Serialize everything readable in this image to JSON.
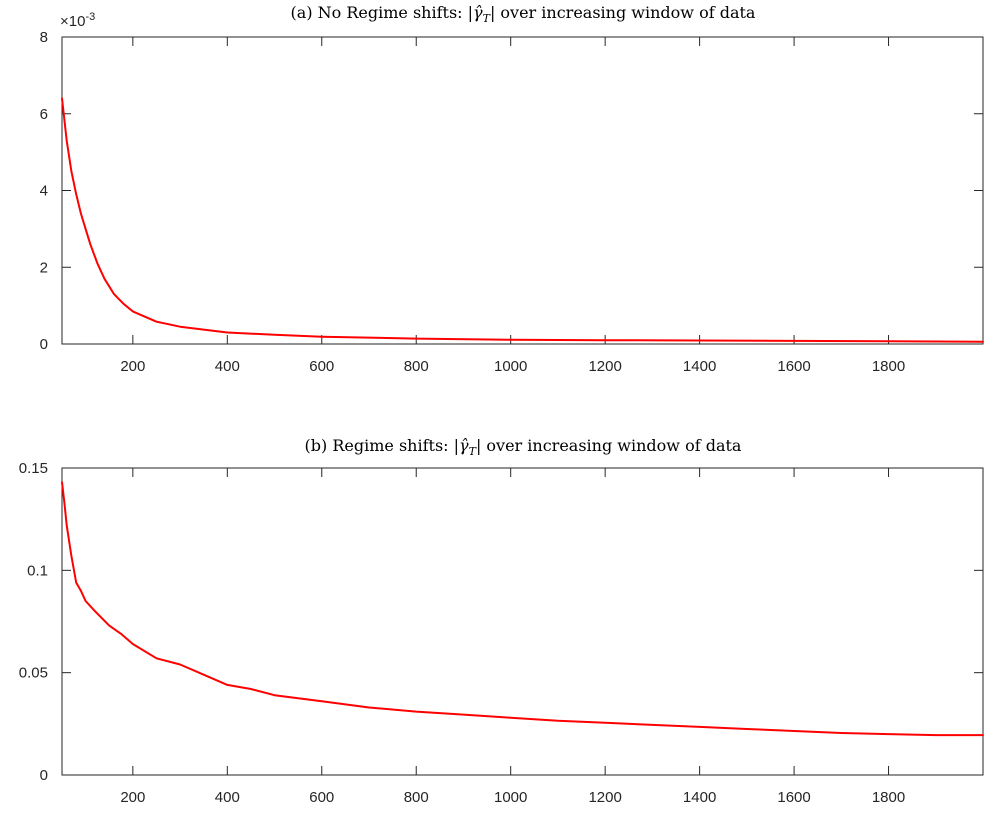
{
  "chart_data": [
    {
      "type": "line",
      "title": "(a) No Regime shifts: |γ̂_T| over increasing window of data",
      "title_parts": {
        "prefix": "(a) No Regime shifts: |",
        "symbol": "γ̂",
        "subscript": "T",
        "suffix": "| over increasing window of data"
      },
      "exponent_label": "×10-3",
      "exponent_parts": {
        "base": "×10",
        "power": "-3"
      },
      "xlim": [
        50,
        2000
      ],
      "ylim": [
        0,
        0.008
      ],
      "xticks": [
        200,
        400,
        600,
        800,
        1000,
        1200,
        1400,
        1600,
        1800
      ],
      "xtick_labels": [
        "200",
        "400",
        "600",
        "800",
        "1000",
        "1200",
        "1400",
        "1600",
        "1800"
      ],
      "yticks": [
        0,
        0.002,
        0.004,
        0.006,
        0.008
      ],
      "ytick_labels": [
        "0",
        "2",
        "4",
        "6",
        "8"
      ],
      "grid": false,
      "series": [
        {
          "color": "#ff0000",
          "x": [
            50,
            60,
            70,
            80,
            90,
            100,
            110,
            125,
            140,
            160,
            180,
            200,
            250,
            300,
            400,
            500,
            600,
            800,
            1000,
            1200,
            1400,
            1600,
            1800,
            2000
          ],
          "y": [
            0.0064,
            0.0053,
            0.0045,
            0.0039,
            0.0034,
            0.003,
            0.0026,
            0.0021,
            0.0017,
            0.0013,
            0.00105,
            0.00085,
            0.00058,
            0.00045,
            0.0003,
            0.00024,
            0.00019,
            0.00014,
            0.00011,
            0.0001,
            9e-05,
            8e-05,
            7e-05,
            6e-05
          ]
        }
      ]
    },
    {
      "type": "line",
      "title": "(b) Regime shifts: |γ̂_T| over increasing window of data",
      "title_parts": {
        "prefix": "(b) Regime shifts: |",
        "symbol": "γ̂",
        "subscript": "T",
        "suffix": "| over increasing window of data"
      },
      "xlim": [
        50,
        2000
      ],
      "ylim": [
        0,
        0.15
      ],
      "xticks": [
        200,
        400,
        600,
        800,
        1000,
        1200,
        1400,
        1600,
        1800
      ],
      "xtick_labels": [
        "200",
        "400",
        "600",
        "800",
        "1000",
        "1200",
        "1400",
        "1600",
        "1800"
      ],
      "yticks": [
        0,
        0.05,
        0.1,
        0.15
      ],
      "ytick_labels": [
        "0",
        "0.05",
        "0.1",
        "0.15"
      ],
      "grid": false,
      "series": [
        {
          "color": "#ff0000",
          "x": [
            50,
            55,
            60,
            70,
            80,
            90,
            100,
            120,
            150,
            175,
            200,
            250,
            300,
            350,
            400,
            450,
            500,
            600,
            700,
            800,
            900,
            1000,
            1100,
            1200,
            1300,
            1400,
            1500,
            1600,
            1700,
            1800,
            1900,
            2000
          ],
          "y": [
            0.143,
            0.133,
            0.122,
            0.107,
            0.094,
            0.09,
            0.085,
            0.08,
            0.073,
            0.069,
            0.064,
            0.057,
            0.054,
            0.049,
            0.044,
            0.042,
            0.039,
            0.036,
            0.033,
            0.031,
            0.0295,
            0.028,
            0.0265,
            0.0255,
            0.0245,
            0.0235,
            0.0225,
            0.0215,
            0.0205,
            0.02,
            0.0195,
            0.0195
          ]
        }
      ]
    }
  ]
}
